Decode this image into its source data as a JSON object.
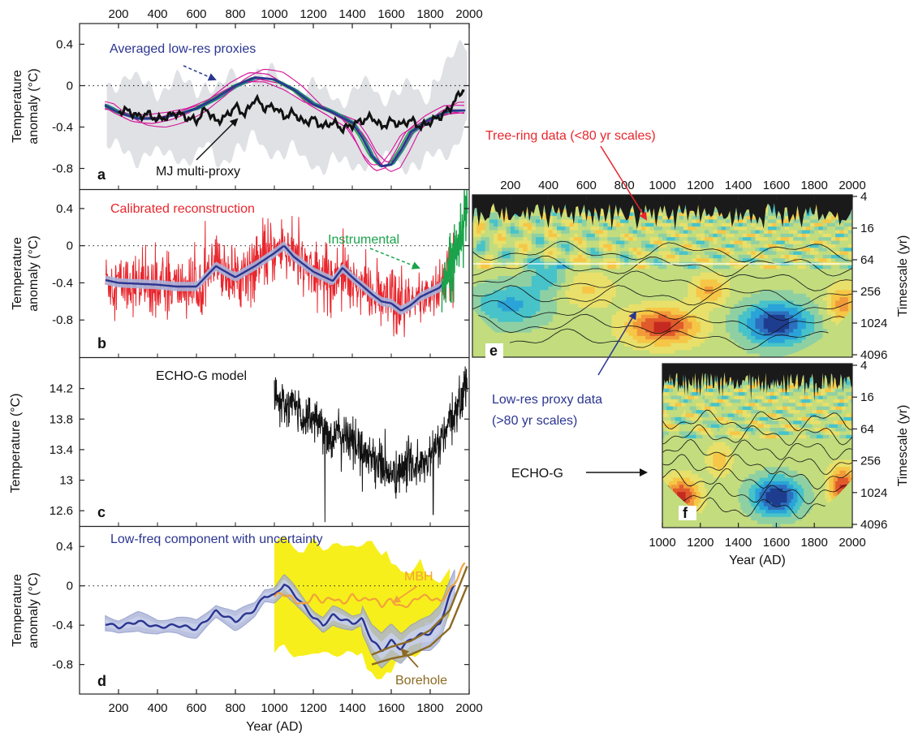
{
  "colors": {
    "black": "#111111",
    "red": "#e8262d",
    "blue_navy": "#2b3590",
    "blue_band": "#a9b3d9",
    "green": "#1aa34a",
    "magenta": "#d6139a",
    "teal": "#1e8a7a",
    "grey_band": "#dfe1e4",
    "yellow_band": "#f7ef1b",
    "orange": "#f2a23a",
    "brown": "#8c6a22",
    "white": "#ffffff"
  },
  "axes": {
    "top_x_ticks": [
      "200",
      "400",
      "600",
      "800",
      "1000",
      "1200",
      "1400",
      "1600",
      "1800",
      "2000"
    ],
    "bottom_x_ticks": [
      "200",
      "400",
      "600",
      "800",
      "1000",
      "1200",
      "1400",
      "1600",
      "1800",
      "2000"
    ],
    "bottom_x_label": "Year (AD)",
    "y_label_anomaly_line1": "Temperature",
    "y_label_anomaly_line2": "anomaly (°C)",
    "y_label_temperature": "Temperature (°C)",
    "anomaly_ticks": [
      "0.4",
      "0",
      "-0.4",
      "-0.8"
    ],
    "model_ticks": [
      "14.2",
      "13.8",
      "13.4",
      "13",
      "12.6"
    ],
    "wavelet_e_top_ticks": [
      "200",
      "400",
      "600",
      "800",
      "1000",
      "1200",
      "1400",
      "1600",
      "1800",
      "2000"
    ],
    "wavelet_f_bottom_ticks": [
      "1000",
      "1200",
      "1400",
      "1600",
      "1800",
      "2000"
    ],
    "wavelet_y_ticks": [
      "4",
      "16",
      "64",
      "256",
      "1024",
      "4096"
    ],
    "wavelet_y_label": "Timescale (yr)",
    "wavelet_x_label": "Year (AD)"
  },
  "panels": {
    "a": {
      "letter": "a",
      "label_proxies": "Averaged low-res proxies",
      "label_mj": "MJ multi-proxy"
    },
    "b": {
      "letter": "b",
      "label_calibrated": "Calibrated reconstruction",
      "label_instrumental": "Instrumental"
    },
    "c": {
      "letter": "c",
      "label_model": "ECHO-G model"
    },
    "d": {
      "letter": "d",
      "label_lowfreq": "Low-freq component with uncertainty",
      "label_mbh": "MBH",
      "label_borehole": "Borehole"
    },
    "e": {
      "letter": "e",
      "label_tree": "Tree-ring data (<80 yr scales)",
      "label_lowres_1": "Low-res proxy data",
      "label_lowres_2": "(>80 yr scales)"
    },
    "f": {
      "letter": "f",
      "label_echog": "ECHO-G"
    }
  },
  "chart_data": [
    {
      "panel": "a",
      "type": "line",
      "x_axis": "Year (AD)",
      "ylabel": "Temperature anomaly (°C)",
      "xlim": [
        0,
        2000
      ],
      "ylim": [
        -1.0,
        0.6
      ],
      "annotations": [
        "Averaged low-res proxies",
        "MJ multi-proxy"
      ],
      "series": [
        {
          "name": "Averaged low-res proxies",
          "color": "blue_navy",
          "x": [
            130,
            200,
            300,
            400,
            500,
            600,
            700,
            800,
            900,
            1000,
            1100,
            1200,
            1300,
            1400,
            1450,
            1500,
            1550,
            1600,
            1650,
            1700,
            1800,
            1900
          ],
          "y": [
            -0.19,
            -0.26,
            -0.32,
            -0.32,
            -0.28,
            -0.22,
            -0.12,
            0.0,
            0.08,
            0.06,
            -0.04,
            -0.18,
            -0.26,
            -0.36,
            -0.5,
            -0.68,
            -0.78,
            -0.76,
            -0.62,
            -0.45,
            -0.32,
            -0.24
          ]
        },
        {
          "name": "MJ multi-proxy",
          "color": "black",
          "x": [
            200,
            250,
            300,
            350,
            400,
            450,
            500,
            550,
            600,
            650,
            700,
            750,
            800,
            850,
            900,
            950,
            1000,
            1050,
            1100,
            1150,
            1200,
            1250,
            1300,
            1350,
            1400,
            1450,
            1500,
            1550,
            1600,
            1650,
            1700,
            1750,
            1800,
            1850,
            1900,
            1950,
            1980
          ],
          "y": [
            -0.25,
            -0.24,
            -0.3,
            -0.27,
            -0.33,
            -0.3,
            -0.26,
            -0.31,
            -0.34,
            -0.22,
            -0.35,
            -0.3,
            -0.2,
            -0.28,
            -0.12,
            -0.22,
            -0.2,
            -0.3,
            -0.26,
            -0.36,
            -0.32,
            -0.4,
            -0.35,
            -0.42,
            -0.38,
            -0.34,
            -0.3,
            -0.4,
            -0.34,
            -0.38,
            -0.33,
            -0.4,
            -0.35,
            -0.3,
            -0.22,
            -0.08,
            -0.02
          ]
        }
      ]
    },
    {
      "panel": "b",
      "type": "line",
      "x_axis": "Year (AD)",
      "ylabel": "Temperature anomaly (°C)",
      "xlim": [
        0,
        2000
      ],
      "ylim": [
        -1.2,
        0.6
      ],
      "annotations": [
        "Calibrated reconstruction",
        "Instrumental"
      ],
      "series": [
        {
          "name": "Calibrated reconstruction",
          "color": "red",
          "note": "annual, range approx -1.2 to 0.3 °C, 133–1925 AD"
        },
        {
          "name": "Low-frequency",
          "color": "blue_navy",
          "x": [
            133,
            200,
            300,
            400,
            500,
            600,
            700,
            800,
            900,
            1000,
            1050,
            1100,
            1200,
            1300,
            1350,
            1400,
            1500,
            1550,
            1600,
            1650,
            1700,
            1750,
            1800,
            1850,
            1900,
            1925
          ],
          "y": [
            -0.37,
            -0.4,
            -0.41,
            -0.42,
            -0.44,
            -0.44,
            -0.22,
            -0.34,
            -0.22,
            -0.08,
            0.0,
            -0.12,
            -0.28,
            -0.38,
            -0.24,
            -0.34,
            -0.52,
            -0.6,
            -0.62,
            -0.7,
            -0.64,
            -0.55,
            -0.5,
            -0.45,
            -0.3,
            -0.16
          ]
        },
        {
          "name": "Instrumental",
          "color": "green",
          "x_range": [
            1860,
            1990
          ],
          "y_range": [
            -0.6,
            0.52
          ]
        }
      ]
    },
    {
      "panel": "c",
      "type": "line",
      "x_axis": "Year (AD)",
      "ylabel": "Temperature (°C)",
      "xlim": [
        0,
        2000
      ],
      "ylim": [
        12.4,
        14.6
      ],
      "annotations": [
        "ECHO-G model"
      ],
      "series": [
        {
          "name": "ECHO-G model",
          "color": "black",
          "x": [
            1000,
            1050,
            1100,
            1150,
            1200,
            1250,
            1300,
            1350,
            1400,
            1450,
            1500,
            1550,
            1600,
            1650,
            1700,
            1750,
            1800,
            1850,
            1900,
            1950,
            1990
          ],
          "y": [
            14.05,
            13.95,
            14.0,
            13.8,
            13.85,
            13.7,
            13.55,
            13.6,
            13.5,
            13.4,
            13.3,
            13.2,
            13.05,
            13.1,
            13.25,
            13.15,
            13.3,
            13.5,
            13.7,
            14.0,
            14.35
          ]
        }
      ]
    },
    {
      "panel": "d",
      "type": "line",
      "x_axis": "Year (AD)",
      "ylabel": "Temperature anomaly (°C)",
      "xlim": [
        0,
        2000
      ],
      "ylim": [
        -1.1,
        0.6
      ],
      "annotations": [
        "Low-freq component with uncertainty",
        "MBH",
        "Borehole"
      ],
      "series": [
        {
          "name": "Low-freq component with uncertainty",
          "color": "blue_navy",
          "x": [
            133,
            200,
            300,
            400,
            500,
            600,
            700,
            800,
            900,
            950,
            1000,
            1050,
            1100,
            1150,
            1200,
            1250,
            1300,
            1350,
            1400,
            1450,
            1500,
            1550,
            1600,
            1650,
            1700,
            1750,
            1800,
            1850,
            1900,
            1925
          ],
          "y": [
            -0.38,
            -0.42,
            -0.36,
            -0.42,
            -0.4,
            -0.44,
            -0.26,
            -0.36,
            -0.24,
            -0.1,
            -0.1,
            0.02,
            -0.08,
            -0.2,
            -0.32,
            -0.4,
            -0.3,
            -0.34,
            -0.38,
            -0.34,
            -0.55,
            -0.66,
            -0.56,
            -0.64,
            -0.54,
            -0.5,
            -0.48,
            -0.38,
            -0.1,
            0.02
          ]
        },
        {
          "name": "MBH",
          "color": "orange",
          "x": [
            1000,
            1050,
            1100,
            1150,
            1200,
            1250,
            1300,
            1350,
            1400,
            1450,
            1500,
            1550,
            1600,
            1650,
            1700,
            1750,
            1800,
            1850,
            1900,
            1950,
            1980
          ],
          "y": [
            -0.1,
            -0.08,
            -0.14,
            -0.2,
            -0.1,
            -0.16,
            -0.12,
            -0.18,
            -0.1,
            -0.15,
            -0.12,
            -0.2,
            -0.14,
            -0.22,
            -0.18,
            -0.1,
            -0.12,
            -0.16,
            -0.05,
            0.12,
            0.24
          ]
        },
        {
          "name": "Borehole",
          "color": "brown",
          "x": [
            1500,
            1600,
            1700,
            1800,
            1900,
            1990
          ],
          "y": [
            -0.7,
            -0.62,
            -0.56,
            -0.45,
            -0.25,
            0.2
          ]
        }
      ]
    },
    {
      "panel": "e",
      "type": "heatmap",
      "x_axis": "Year (AD)",
      "y_axis": "Timescale (yr)",
      "xlim": [
        0,
        2000
      ],
      "y_scale": "log2",
      "y_ticks": [
        4,
        16,
        64,
        256,
        1024,
        4096
      ],
      "annotations": [
        "Tree-ring data (<80 yr scales)",
        "Low-res proxy data (>80 yr scales)"
      ]
    },
    {
      "panel": "f",
      "type": "heatmap",
      "x_axis": "Year (AD)",
      "y_axis": "Timescale (yr)",
      "xlim": [
        1000,
        2000
      ],
      "y_scale": "log2",
      "y_ticks": [
        4,
        16,
        64,
        256,
        1024,
        4096
      ],
      "annotations": [
        "ECHO-G"
      ]
    }
  ]
}
